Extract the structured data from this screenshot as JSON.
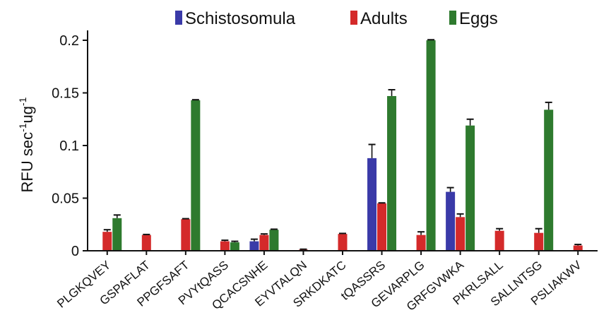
{
  "chart_data": {
    "type": "bar",
    "ylabel_main": "RFU sec",
    "ylabel_sup1": "-1",
    "ylabel_mid": "ug",
    "ylabel_sup2": "-1",
    "ylim": [
      0,
      0.2
    ],
    "yticks": [
      0,
      0.05,
      0.1,
      0.15,
      0.2
    ],
    "ytick_labels": [
      "0",
      "0.05",
      "0.1",
      "0.15",
      "0.2"
    ],
    "legend_position": "top",
    "categories": [
      "PLGKQVEY",
      "GSPAFLAT",
      "PPGFSAFT",
      "PVYtQASS",
      "QCACSNHE",
      "EYVTALQN",
      "SRKDKATC",
      "tQASSRS",
      "GEVARPLG",
      "GRFGVWKA",
      "PKRLSALL",
      "SALLNTSG",
      "PSLIAKWV"
    ],
    "series": [
      {
        "name": "Schistosomula",
        "color": "#3a3aa8",
        "values": [
          0,
          0,
          0,
          0,
          0.009,
          0,
          0,
          0.088,
          0,
          0.056,
          0,
          0,
          0
        ],
        "errors": [
          0,
          0,
          0,
          0,
          0.002,
          0,
          0,
          0.013,
          0,
          0.004,
          0,
          0,
          0
        ]
      },
      {
        "name": "Adults",
        "color": "#d42a2a",
        "values": [
          0.018,
          0.015,
          0.03,
          0.009,
          0.015,
          0.001,
          0.016,
          0.045,
          0.015,
          0.032,
          0.019,
          0.017,
          0.005
        ],
        "errors": [
          0.002,
          0.0005,
          0.0005,
          0.001,
          0.001,
          0.0005,
          0.0005,
          0.0005,
          0.003,
          0.003,
          0.002,
          0.004,
          0.001
        ]
      },
      {
        "name": "Eggs",
        "color": "#2e7a2e",
        "values": [
          0.031,
          0,
          0.143,
          0.008,
          0.02,
          0,
          0,
          0.147,
          0.2,
          0.119,
          0,
          0.134,
          0
        ],
        "errors": [
          0.003,
          0,
          0.0005,
          0.001,
          0.0005,
          0,
          0,
          0.006,
          0.0005,
          0.006,
          0,
          0.007,
          0
        ]
      }
    ]
  }
}
